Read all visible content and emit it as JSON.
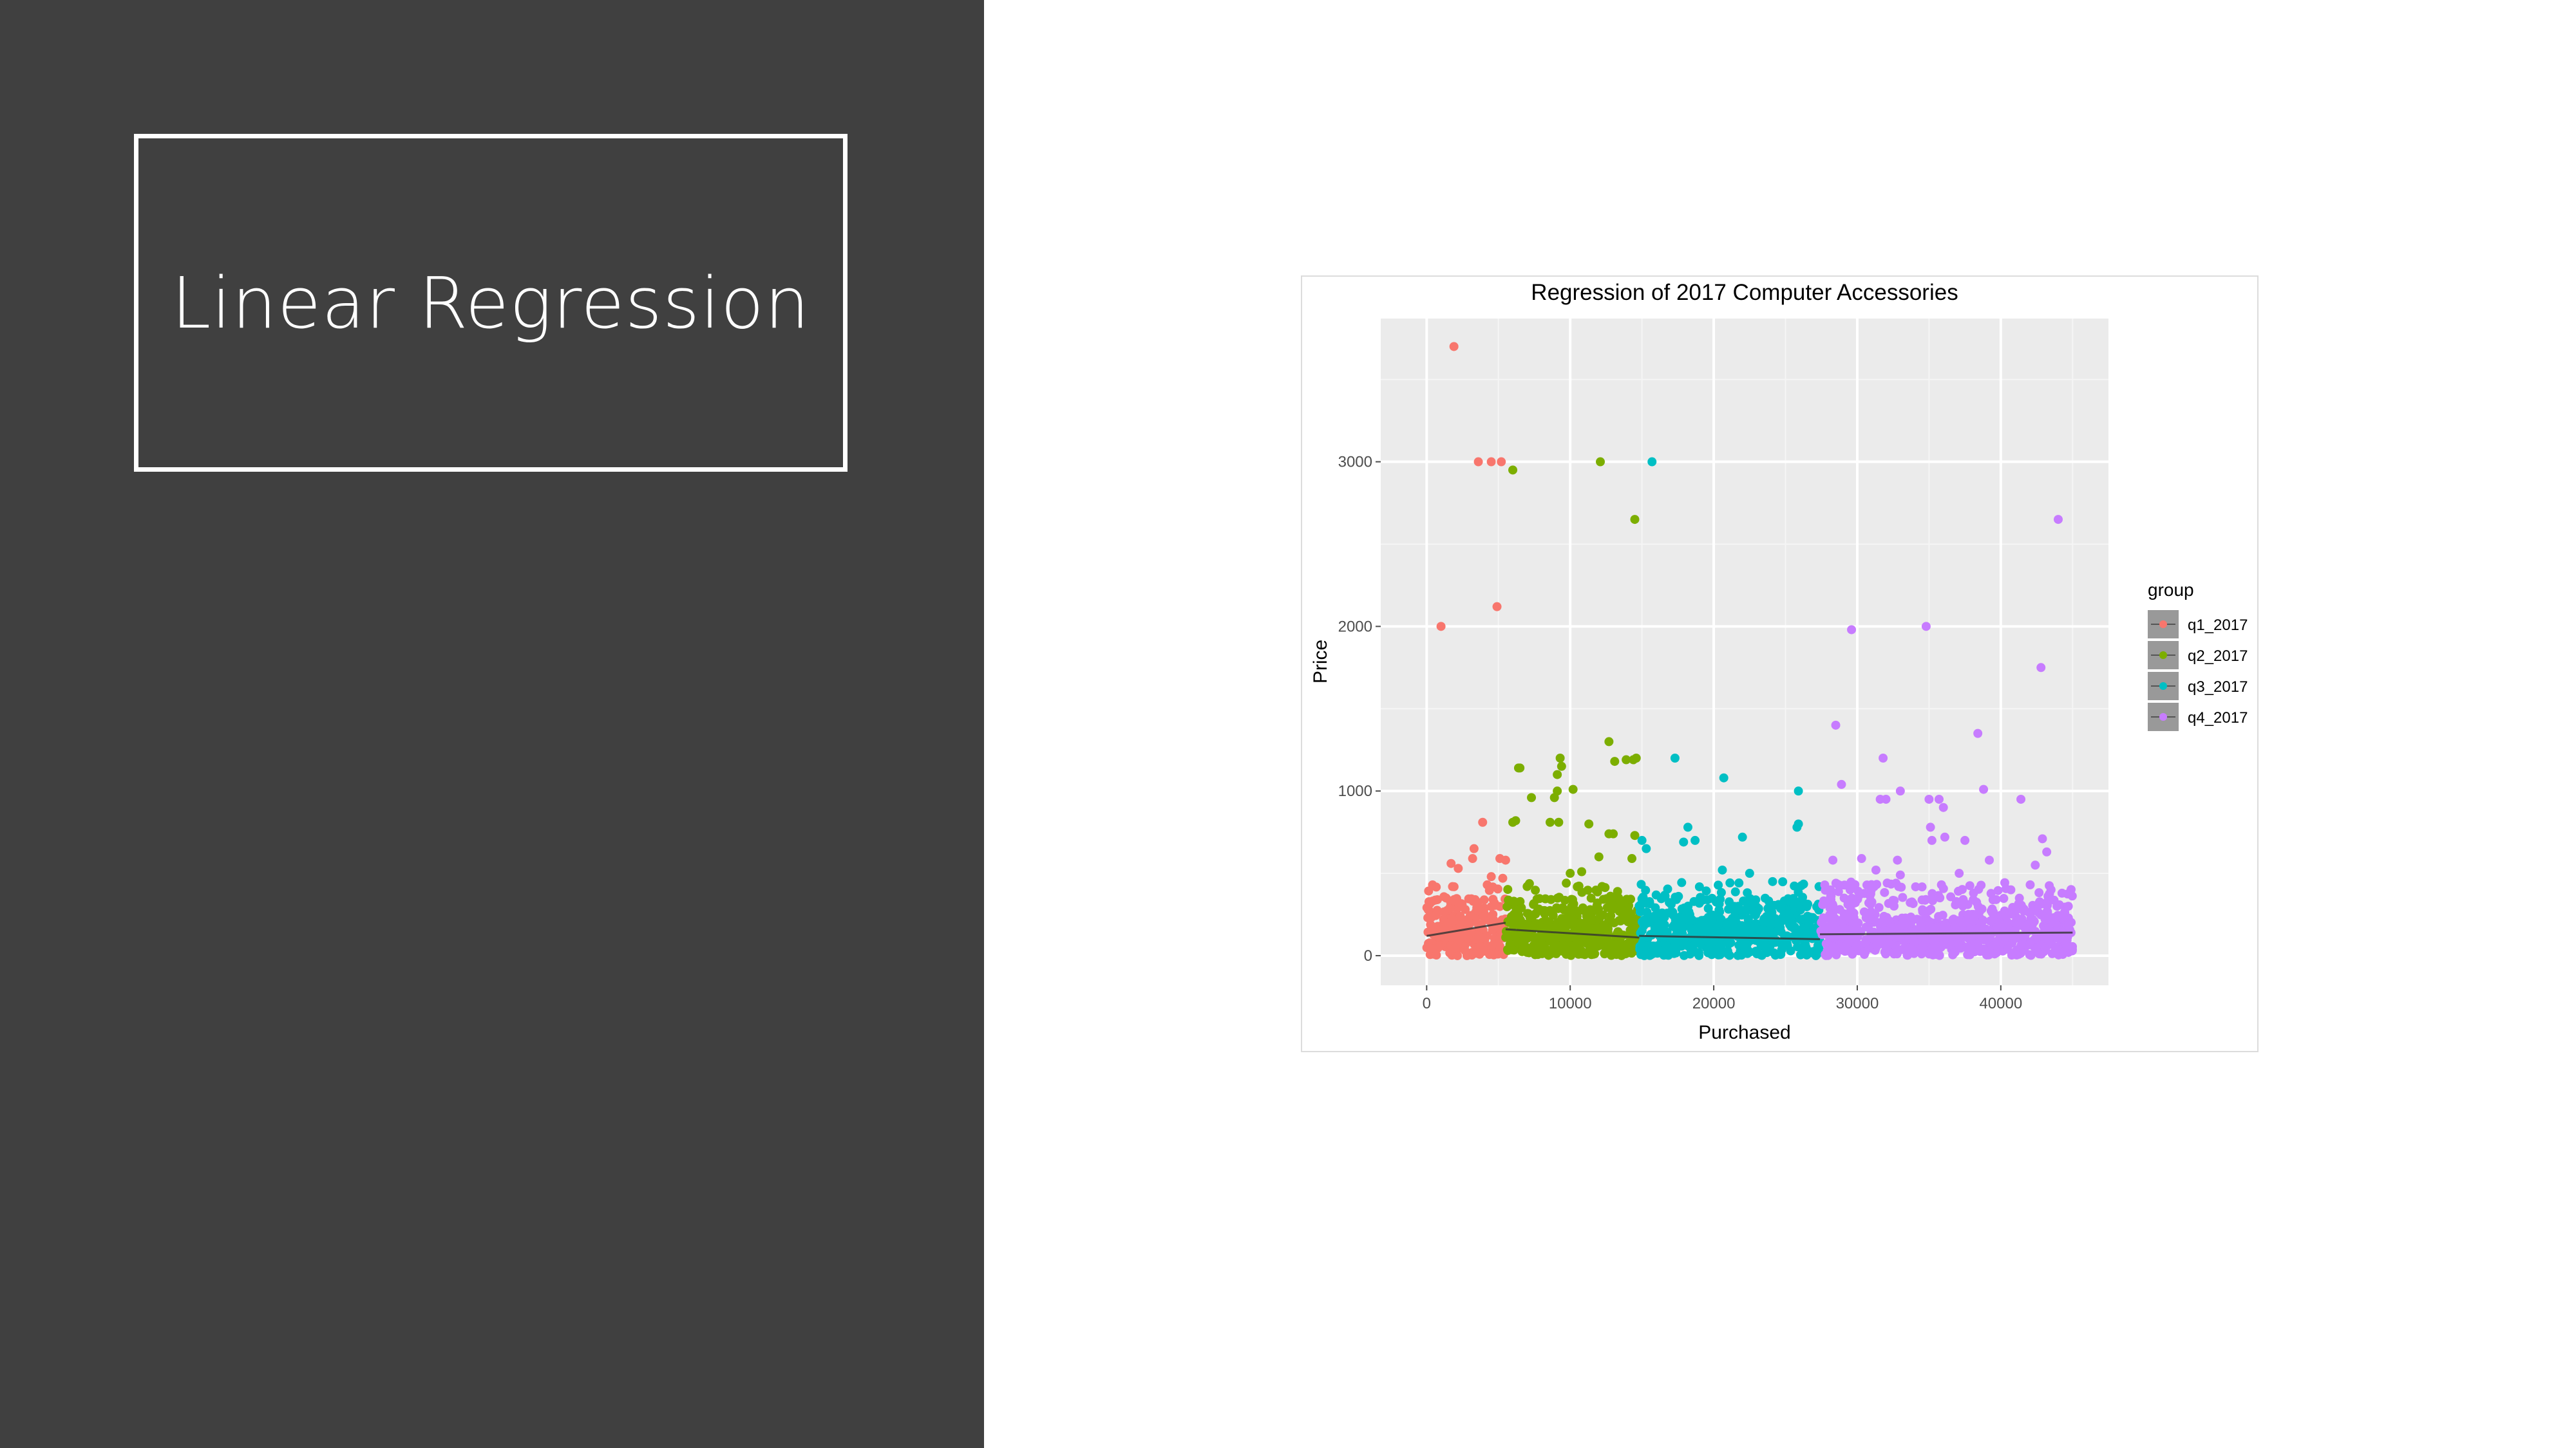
{
  "slide": {
    "title": "Linear Regression",
    "panel_color": "#404040"
  },
  "chart_data": {
    "type": "scatter",
    "title": "Regression of 2017 Computer Accessories",
    "xlabel": "Purchased",
    "ylabel": "Price",
    "xlim": [
      -3200,
      47500
    ],
    "ylim": [
      -180,
      3870
    ],
    "x_ticks": [
      0,
      10000,
      20000,
      30000,
      40000
    ],
    "y_ticks": [
      0,
      1000,
      2000,
      3000
    ],
    "grid": true,
    "legend_title": "group",
    "legend_position": "right",
    "series": [
      {
        "name": "q1_2017",
        "color": "#F8766D",
        "x_range": [
          0,
          5500
        ],
        "points": [
          [
            1900,
            3700
          ],
          [
            3600,
            3000
          ],
          [
            4500,
            3000
          ],
          [
            5200,
            3000
          ],
          [
            1000,
            2000
          ],
          [
            4900,
            2120
          ],
          [
            3900,
            810
          ],
          [
            3300,
            650
          ],
          [
            3200,
            590
          ],
          [
            1700,
            560
          ],
          [
            2200,
            530
          ],
          [
            5100,
            590
          ],
          [
            5500,
            580
          ],
          [
            4500,
            480
          ],
          [
            5300,
            470
          ]
        ],
        "fit": [
          [
            0,
            120
          ],
          [
            5500,
            200
          ]
        ]
      },
      {
        "name": "q2_2017",
        "color": "#7CAE00",
        "x_range": [
          5500,
          14800
        ],
        "points": [
          [
            6000,
            2950
          ],
          [
            12100,
            3000
          ],
          [
            14500,
            2650
          ],
          [
            12700,
            1300
          ],
          [
            9300,
            1200
          ],
          [
            9400,
            1150
          ],
          [
            6500,
            1140
          ],
          [
            6400,
            1140
          ],
          [
            9100,
            1100
          ],
          [
            14400,
            1190
          ],
          [
            14600,
            1200
          ],
          [
            13900,
            1190
          ],
          [
            13100,
            1180
          ],
          [
            10200,
            1010
          ],
          [
            7300,
            960
          ],
          [
            8900,
            960
          ],
          [
            9100,
            1000
          ],
          [
            6200,
            820
          ],
          [
            6000,
            810
          ],
          [
            8600,
            810
          ],
          [
            9200,
            810
          ],
          [
            11300,
            800
          ],
          [
            12700,
            740
          ],
          [
            13000,
            740
          ],
          [
            14500,
            730
          ],
          [
            10800,
            510
          ],
          [
            10000,
            500
          ],
          [
            13300,
            390
          ],
          [
            7000,
            420
          ],
          [
            12000,
            600
          ],
          [
            14300,
            590
          ]
        ],
        "fit": [
          [
            5500,
            160
          ],
          [
            14800,
            110
          ]
        ]
      },
      {
        "name": "q3_2017",
        "color": "#00BFC4",
        "x_range": [
          14800,
          27400
        ],
        "points": [
          [
            15700,
            3000
          ],
          [
            17300,
            1200
          ],
          [
            20700,
            1080
          ],
          [
            18200,
            780
          ],
          [
            17900,
            690
          ],
          [
            18700,
            700
          ],
          [
            22000,
            720
          ],
          [
            25900,
            1000
          ],
          [
            25900,
            800
          ],
          [
            25800,
            780
          ],
          [
            15300,
            650
          ],
          [
            15000,
            700
          ],
          [
            20600,
            520
          ],
          [
            22500,
            500
          ],
          [
            24100,
            450
          ]
        ],
        "fit": [
          [
            14800,
            120
          ],
          [
            27400,
            100
          ]
        ]
      },
      {
        "name": "q4_2017",
        "color": "#C77CFF",
        "x_range": [
          27400,
          45000
        ],
        "points": [
          [
            44000,
            2650
          ],
          [
            29600,
            1980
          ],
          [
            34800,
            2000
          ],
          [
            42800,
            1750
          ],
          [
            28500,
            1400
          ],
          [
            38400,
            1350
          ],
          [
            31800,
            1200
          ],
          [
            28900,
            1040
          ],
          [
            33000,
            1000
          ],
          [
            35000,
            950
          ],
          [
            35700,
            950
          ],
          [
            31600,
            950
          ],
          [
            32000,
            950
          ],
          [
            38800,
            1010
          ],
          [
            41400,
            950
          ],
          [
            36000,
            900
          ],
          [
            35200,
            700
          ],
          [
            35100,
            780
          ],
          [
            36100,
            720
          ],
          [
            37500,
            700
          ],
          [
            43200,
            630
          ],
          [
            42900,
            710
          ],
          [
            30300,
            590
          ],
          [
            28300,
            580
          ],
          [
            32800,
            580
          ],
          [
            39200,
            580
          ],
          [
            42400,
            550
          ],
          [
            31300,
            520
          ],
          [
            37100,
            500
          ],
          [
            33000,
            490
          ],
          [
            40700,
            400
          ],
          [
            43500,
            400
          ],
          [
            38100,
            380
          ],
          [
            29500,
            400
          ]
        ],
        "fit": [
          [
            27400,
            130
          ],
          [
            45000,
            140
          ]
        ]
      }
    ]
  }
}
